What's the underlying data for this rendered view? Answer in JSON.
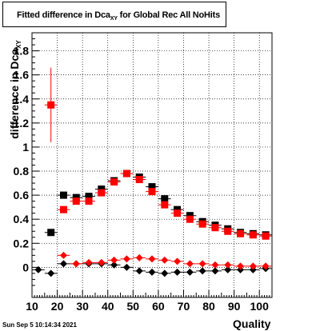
{
  "title": {
    "main": "Fitted difference in Dca",
    "sub": "XY",
    "rest": " for Global Rec All NoHits"
  },
  "timestamp": "Sun Sep  5 10:14:34 2021",
  "chart_data": {
    "type": "scatter",
    "xlabel": "Quality",
    "ylabel_main": "difference in Dca",
    "ylabel_sub": "XY",
    "xlim": [
      10,
      105
    ],
    "ylim": [
      -0.25,
      1.95
    ],
    "x_ticks": [
      10,
      20,
      30,
      40,
      50,
      60,
      70,
      80,
      90,
      100
    ],
    "y_ticks": [
      0,
      0.2,
      0.4,
      0.6,
      0.8,
      1,
      1.2,
      1.4,
      1.6,
      1.8
    ],
    "y_tick_labels": [
      "0",
      "0.2",
      "0.4",
      "0.6",
      "0.8",
      "1",
      "1.2",
      "1.4",
      "1.6",
      "1.8"
    ],
    "grid": true,
    "series": [
      {
        "marker": "square",
        "color": "#000000",
        "x": [
          17.5,
          22.5,
          27.5,
          32.5,
          37.5,
          42.5,
          47.5,
          52.5,
          57.5,
          62.5,
          67.5,
          72.5,
          77.5,
          82.5,
          87.5,
          92.5,
          97.5,
          102.5
        ],
        "y": [
          0.29,
          0.6,
          0.58,
          0.59,
          0.65,
          0.72,
          0.78,
          0.75,
          0.67,
          0.57,
          0.48,
          0.43,
          0.38,
          0.35,
          0.32,
          0.29,
          0.28,
          0.27
        ],
        "err": [
          0,
          0.02,
          0.02,
          0.02,
          0.02,
          0.02,
          0.02,
          0.02,
          0.02,
          0.02,
          0.02,
          0.02,
          0.02,
          0.02,
          0.02,
          0.02,
          0.02,
          0.02
        ]
      },
      {
        "marker": "square",
        "color": "#ff0000",
        "x": [
          17.5,
          22.5,
          27.5,
          32.5,
          37.5,
          42.5,
          47.5,
          52.5,
          57.5,
          62.5,
          67.5,
          72.5,
          77.5,
          82.5,
          87.5,
          92.5,
          97.5,
          102.5
        ],
        "y": [
          1.35,
          0.48,
          0.55,
          0.55,
          0.62,
          0.71,
          0.78,
          0.73,
          0.63,
          0.52,
          0.45,
          0.4,
          0.36,
          0.33,
          0.3,
          0.28,
          0.27,
          0.26
        ],
        "err": [
          0.31,
          0.02,
          0.02,
          0.02,
          0.02,
          0.02,
          0.02,
          0.02,
          0.02,
          0.02,
          0.02,
          0.02,
          0.02,
          0.02,
          0.02,
          0.02,
          0.02,
          0.02
        ]
      },
      {
        "marker": "diamond",
        "color": "#000000",
        "x": [
          12.5,
          17.5,
          22.5,
          27.5,
          32.5,
          37.5,
          42.5,
          47.5,
          52.5,
          57.5,
          62.5,
          67.5,
          72.5,
          77.5,
          82.5,
          87.5,
          92.5,
          97.5,
          102.5
        ],
        "y": [
          -0.02,
          -0.05,
          0.03,
          0.03,
          0.03,
          0.03,
          0.02,
          0.0,
          -0.03,
          -0.04,
          -0.05,
          -0.04,
          -0.04,
          -0.03,
          -0.03,
          -0.02,
          -0.02,
          -0.02,
          -0.01
        ],
        "err": [
          0,
          0,
          0,
          0,
          0,
          0,
          0,
          0,
          0,
          0,
          0,
          0,
          0,
          0,
          0,
          0,
          0,
          0,
          0
        ]
      },
      {
        "marker": "diamond",
        "color": "#ff0000",
        "x": [
          22.5,
          27.5,
          32.5,
          37.5,
          42.5,
          47.5,
          52.5,
          57.5,
          62.5,
          67.5,
          72.5,
          77.5,
          82.5,
          87.5,
          92.5,
          97.5,
          102.5
        ],
        "y": [
          0.1,
          0.03,
          0.04,
          0.04,
          0.06,
          0.07,
          0.08,
          0.07,
          0.06,
          0.05,
          0.03,
          0.03,
          0.02,
          0.02,
          0.01,
          0.01,
          0.01
        ],
        "err": [
          0,
          0,
          0,
          0,
          0,
          0,
          0,
          0,
          0,
          0,
          0,
          0,
          0,
          0,
          0,
          0,
          0
        ]
      }
    ]
  }
}
